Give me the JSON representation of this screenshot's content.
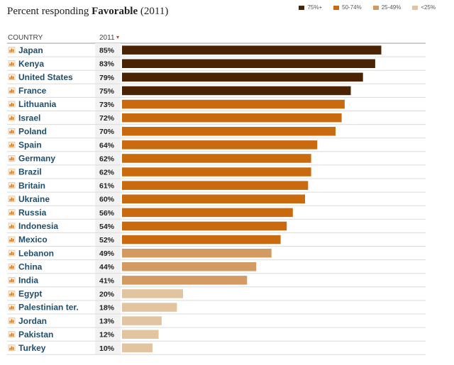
{
  "title": {
    "prefix": "Percent responding ",
    "bold": "Favorable",
    "suffix": " (2011)"
  },
  "legend": [
    {
      "label": "75%+",
      "color": "#4a2304"
    },
    {
      "label": "50-74%",
      "color": "#c96a0f"
    },
    {
      "label": "25-49%",
      "color": "#d39a62"
    },
    {
      "label": "<25%",
      "color": "#e3c4a0"
    }
  ],
  "table": {
    "country_header": "COUNTRY",
    "year_header": "2011",
    "sort_icon": "sort-down-icon",
    "row_icon": "bar-chart-icon"
  },
  "chart_data": {
    "type": "bar",
    "orientation": "horizontal",
    "title": "Percent responding Favorable (2011)",
    "xlim": [
      0,
      100
    ],
    "categories": [
      "Japan",
      "Kenya",
      "United States",
      "France",
      "Lithuania",
      "Israel",
      "Poland",
      "Spain",
      "Germany",
      "Brazil",
      "Britain",
      "Ukraine",
      "Russia",
      "Indonesia",
      "Mexico",
      "Lebanon",
      "China",
      "India",
      "Egypt",
      "Palestinian ter.",
      "Jordan",
      "Pakistan",
      "Turkey"
    ],
    "values": [
      85,
      83,
      79,
      75,
      73,
      72,
      70,
      64,
      62,
      62,
      61,
      60,
      56,
      54,
      52,
      49,
      44,
      41,
      20,
      18,
      13,
      12,
      10
    ],
    "labels": [
      "85%",
      "83%",
      "79%",
      "75%",
      "73%",
      "72%",
      "70%",
      "64%",
      "62%",
      "62%",
      "61%",
      "60%",
      "56%",
      "54%",
      "52%",
      "49%",
      "44%",
      "41%",
      "20%",
      "18%",
      "13%",
      "12%",
      "10%"
    ]
  }
}
